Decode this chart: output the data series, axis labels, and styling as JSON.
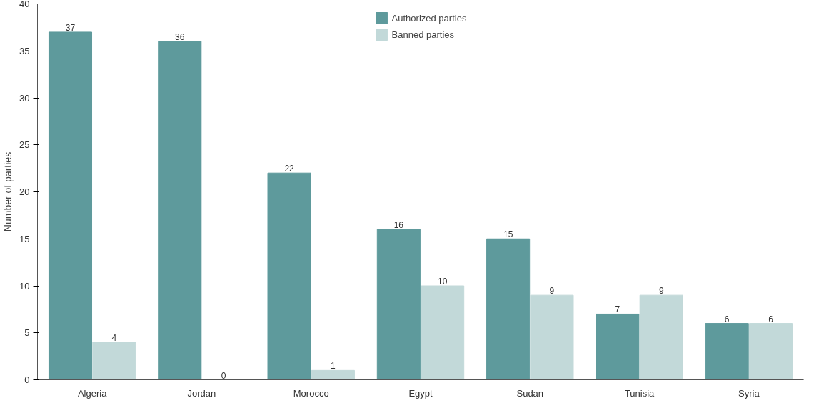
{
  "chart_data": {
    "type": "bar",
    "ylabel": "Number of parties",
    "categories": [
      "Algeria",
      "Jordan",
      "Morocco",
      "Egypt",
      "Sudan",
      "Tunisia",
      "Syria"
    ],
    "series": [
      {
        "name": "Authorized parties",
        "color": "#5e9a9c",
        "values": [
          37,
          36,
          22,
          16,
          15,
          7,
          6
        ]
      },
      {
        "name": "Banned parties",
        "color": "#c2d9d9",
        "values": [
          4,
          0,
          1,
          10,
          9,
          9,
          6
        ]
      }
    ],
    "ylim": [
      0,
      40
    ],
    "yticks": [
      0,
      5,
      10,
      15,
      20,
      25,
      30,
      35,
      40
    ],
    "grid": false,
    "legend": "top",
    "data_labels": true
  }
}
